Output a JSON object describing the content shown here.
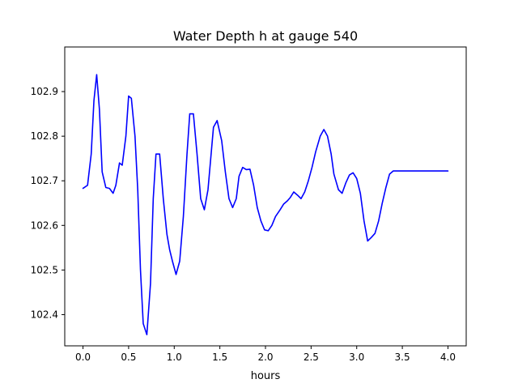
{
  "chart_data": {
    "type": "line",
    "title": "Water Depth h at gauge 540",
    "xlabel": "hours",
    "ylabel": "",
    "xlim": [
      -0.2,
      4.2
    ],
    "ylim": [
      102.33,
      103.0
    ],
    "xticks": [
      0.0,
      0.5,
      1.0,
      1.5,
      2.0,
      2.5,
      3.0,
      3.5,
      4.0
    ],
    "xtick_labels": [
      "0.0",
      "0.5",
      "1.0",
      "1.5",
      "2.0",
      "2.5",
      "3.0",
      "3.5",
      "4.0"
    ],
    "yticks": [
      102.4,
      102.5,
      102.6,
      102.7,
      102.8,
      102.9
    ],
    "ytick_labels": [
      "102.4",
      "102.5",
      "102.6",
      "102.7",
      "102.8",
      "102.9"
    ],
    "grid": false,
    "series": [
      {
        "color": "#0000ff",
        "x": [
          0.0,
          0.05,
          0.09,
          0.12,
          0.15,
          0.18,
          0.21,
          0.25,
          0.29,
          0.33,
          0.36,
          0.4,
          0.43,
          0.47,
          0.5,
          0.53,
          0.57,
          0.6,
          0.63,
          0.66,
          0.7,
          0.74,
          0.77,
          0.8,
          0.84,
          0.88,
          0.92,
          0.95,
          0.98,
          1.02,
          1.06,
          1.1,
          1.14,
          1.17,
          1.21,
          1.25,
          1.29,
          1.33,
          1.37,
          1.4,
          1.43,
          1.47,
          1.52,
          1.56,
          1.6,
          1.64,
          1.68,
          1.71,
          1.75,
          1.79,
          1.83,
          1.87,
          1.91,
          1.95,
          1.99,
          2.03,
          2.07,
          2.11,
          2.16,
          2.2,
          2.24,
          2.27,
          2.31,
          2.35,
          2.39,
          2.43,
          2.47,
          2.51,
          2.55,
          2.6,
          2.64,
          2.68,
          2.72,
          2.75,
          2.8,
          2.84,
          2.88,
          2.92,
          2.96,
          3.0,
          3.04,
          3.08,
          3.12,
          3.16,
          3.2,
          3.24,
          3.28,
          3.32,
          3.36,
          3.4,
          3.44,
          3.48,
          3.52,
          3.56,
          3.6,
          3.64,
          3.68,
          3.72,
          3.76,
          3.8,
          3.84,
          3.88,
          3.92,
          3.96,
          4.0
        ],
        "y": [
          102.683,
          102.69,
          102.76,
          102.88,
          102.938,
          102.86,
          102.72,
          102.685,
          102.683,
          102.672,
          102.69,
          102.74,
          102.735,
          102.8,
          102.89,
          102.885,
          102.8,
          102.68,
          102.5,
          102.38,
          102.355,
          102.47,
          102.66,
          102.76,
          102.76,
          102.66,
          102.58,
          102.545,
          102.52,
          102.49,
          102.52,
          102.62,
          102.76,
          102.85,
          102.85,
          102.76,
          102.66,
          102.635,
          102.68,
          102.75,
          102.82,
          102.835,
          102.79,
          102.72,
          102.66,
          102.64,
          102.66,
          102.71,
          102.73,
          102.725,
          102.726,
          102.69,
          102.64,
          102.61,
          102.59,
          102.588,
          102.6,
          102.62,
          102.635,
          102.648,
          102.655,
          102.662,
          102.675,
          102.668,
          102.66,
          102.675,
          102.7,
          102.73,
          102.765,
          102.8,
          102.815,
          102.8,
          102.76,
          102.715,
          102.68,
          102.672,
          102.695,
          102.713,
          102.718,
          102.705,
          102.672,
          102.61,
          102.565,
          102.573,
          102.582,
          102.61,
          102.65,
          102.685,
          102.715,
          102.722,
          102.722,
          102.722,
          102.722,
          102.722,
          102.722,
          102.722,
          102.722,
          102.722,
          102.722,
          102.722,
          102.722,
          102.722,
          102.722,
          102.722,
          102.722
        ]
      }
    ]
  }
}
